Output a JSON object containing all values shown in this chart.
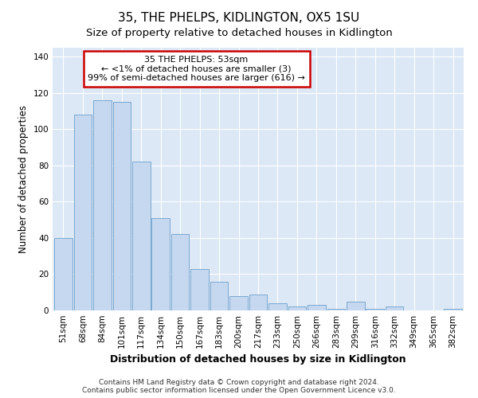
{
  "title": "35, THE PHELPS, KIDLINGTON, OX5 1SU",
  "subtitle": "Size of property relative to detached houses in Kidlington",
  "xlabel": "Distribution of detached houses by size in Kidlington",
  "ylabel": "Number of detached properties",
  "bar_color": "#c5d8f0",
  "bar_edge_color": "#7aa8d0",
  "categories": [
    "51sqm",
    "68sqm",
    "84sqm",
    "101sqm",
    "117sqm",
    "134sqm",
    "150sqm",
    "167sqm",
    "183sqm",
    "200sqm",
    "217sqm",
    "233sqm",
    "250sqm",
    "266sqm",
    "283sqm",
    "299sqm",
    "316sqm",
    "332sqm",
    "349sqm",
    "365sqm",
    "382sqm"
  ],
  "values": [
    40,
    108,
    116,
    115,
    82,
    51,
    42,
    23,
    16,
    8,
    9,
    4,
    2,
    3,
    1,
    5,
    1,
    2,
    0,
    0,
    1
  ],
  "annotation_text": "35 THE PHELPS: 53sqm\n← <1% of detached houses are smaller (3)\n99% of semi-detached houses are larger (616) →",
  "annotation_box_color": "#ffffff",
  "annotation_box_edge": "#cc0000",
  "ylim": [
    0,
    145
  ],
  "yticks": [
    0,
    20,
    40,
    60,
    80,
    100,
    120,
    140
  ],
  "plot_bg_color": "#dce8f5",
  "fig_bg_color": "#ffffff",
  "grid_color": "#ffffff",
  "title_fontsize": 11,
  "subtitle_fontsize": 9.5,
  "xlabel_fontsize": 9,
  "ylabel_fontsize": 8.5,
  "tick_fontsize": 7.5,
  "annot_fontsize": 8,
  "footer_fontsize": 6.5,
  "footer": "Contains HM Land Registry data © Crown copyright and database right 2024.\nContains public sector information licensed under the Open Government Licence v3.0."
}
